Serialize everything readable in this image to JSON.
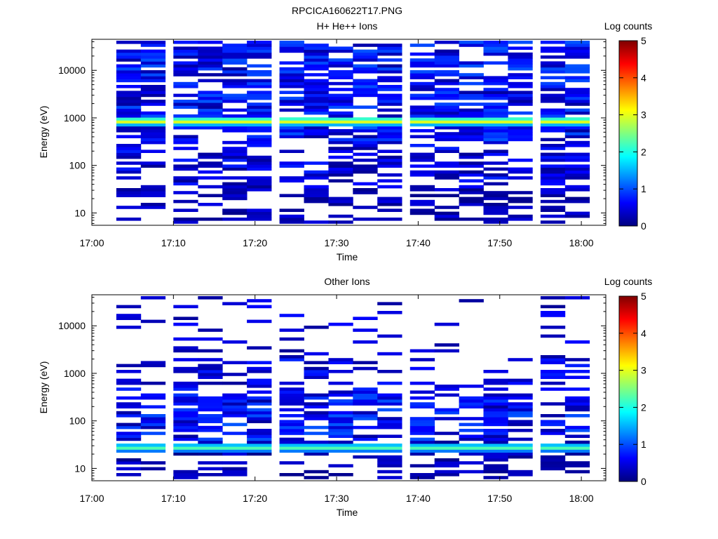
{
  "figure_title": "RPCICA160622T17.PNG",
  "colormap": [
    "#00007f",
    "#0000ff",
    "#0080ff",
    "#00ffff",
    "#80ff80",
    "#ffff00",
    "#ff8000",
    "#ff0000",
    "#7f0000"
  ],
  "chart_data": [
    {
      "type": "heatmap",
      "title": "H+ He++ Ions",
      "xlabel": "Time",
      "ylabel": "Energy (eV)",
      "x_ticks": [
        "17:00",
        "17:10",
        "17:20",
        "17:30",
        "17:40",
        "17:50",
        "18:00"
      ],
      "xlim": [
        "17:00",
        "18:03"
      ],
      "y_scale": "log",
      "ylim": [
        5.5,
        45000
      ],
      "y_ticks": [
        "10",
        "100",
        "1000",
        "10000"
      ],
      "colorbar_label": "Log counts",
      "colorbar_ticks": [
        "0",
        "1",
        "2",
        "3",
        "4",
        "5"
      ],
      "clim": [
        0,
        5
      ],
      "time_bins": [
        "17:03",
        "17:06",
        "17:10",
        "17:13",
        "17:16",
        "17:19",
        "17:23",
        "17:26",
        "17:29",
        "17:32",
        "17:35",
        "17:39",
        "17:42",
        "17:45",
        "17:48",
        "17:51",
        "17:55",
        "17:58"
      ],
      "profile": "proton"
    },
    {
      "type": "heatmap",
      "title": "Other Ions",
      "xlabel": "Time",
      "ylabel": "Energy (eV)",
      "x_ticks": [
        "17:00",
        "17:10",
        "17:20",
        "17:30",
        "17:40",
        "17:50",
        "18:00"
      ],
      "xlim": [
        "17:00",
        "18:03"
      ],
      "y_scale": "log",
      "ylim": [
        5.5,
        45000
      ],
      "y_ticks": [
        "10",
        "100",
        "1000",
        "10000"
      ],
      "colorbar_label": "Log counts",
      "colorbar_ticks": [
        "0",
        "1",
        "2",
        "3",
        "4",
        "5"
      ],
      "clim": [
        0,
        5
      ],
      "time_bins": [
        "17:03",
        "17:06",
        "17:10",
        "17:13",
        "17:16",
        "17:19",
        "17:23",
        "17:26",
        "17:29",
        "17:32",
        "17:35",
        "17:39",
        "17:42",
        "17:45",
        "17:48",
        "17:51",
        "17:55",
        "17:58"
      ],
      "profile": "heavy"
    }
  ]
}
